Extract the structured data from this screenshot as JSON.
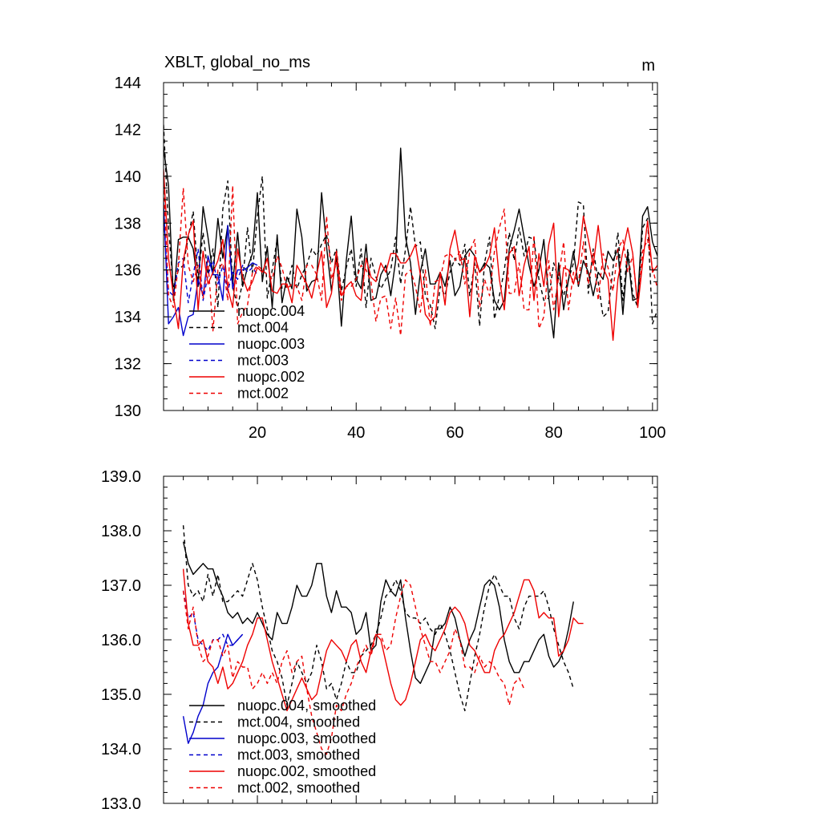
{
  "chart_data": [
    {
      "type": "line",
      "title": "XBLT, global_no_ms",
      "units": "m",
      "xlim": [
        1,
        101
      ],
      "ylim": [
        130,
        144
      ],
      "xticks": [
        20,
        40,
        60,
        80,
        100
      ],
      "yticks": [
        130,
        132,
        134,
        136,
        138,
        140,
        142,
        144
      ],
      "ytick_labels": [
        "130",
        "132",
        "134",
        "136",
        "138",
        "140",
        "142",
        "144"
      ],
      "xtick_labels": [
        "20",
        "40",
        "60",
        "80",
        "100"
      ],
      "legend_position": "bottom-left",
      "series": [
        {
          "name": "nuopc.004",
          "color": "#000000",
          "dash": "solid",
          "x_start": 1,
          "values": [
            141.2,
            139.6,
            134.7,
            137.3,
            137.4,
            137.4,
            136.9,
            135.3,
            138.7,
            137.4,
            135.8,
            138.2,
            136.5,
            137.9,
            135.4,
            137.6,
            135.3,
            136.1,
            136.7,
            139.3,
            135.5,
            137.0,
            134.4,
            137.5,
            134.6,
            135.7,
            135.2,
            138.6,
            137.4,
            135.1,
            135.5,
            135.6,
            139.3,
            137.0,
            135.1,
            136.6,
            133.6,
            136.4,
            138.3,
            135.6,
            135.2,
            137.1,
            134.7,
            134.8,
            135.8,
            136.2,
            134.9,
            136.4,
            141.2,
            137.4,
            136.3,
            134.1,
            135.9,
            136.9,
            135.4,
            135.4,
            135.9,
            135.3,
            136.4,
            134.9,
            135.3,
            136.6,
            136.9,
            136.6,
            135.9,
            136.3,
            136.1,
            134.7,
            134.3,
            134.7,
            136.9,
            137.7,
            138.6,
            137.4,
            136.2,
            135.3,
            136.0,
            137.3,
            134.8,
            133.1,
            136.3,
            134.3,
            135.6,
            136.8,
            135.3,
            136.4,
            135.9,
            134.9,
            135.9,
            135.6,
            136.8,
            136.4,
            136.9,
            134.1,
            136.7,
            134.7,
            134.8,
            138.3,
            138.7,
            137.2,
            136.6
          ]
        },
        {
          "name": "mct.004",
          "color": "#000000",
          "dash": "dashed",
          "x_start": 1,
          "values": [
            142.2,
            137.8,
            135.2,
            136.0,
            136.2,
            137.4,
            138.5,
            135.6,
            137.6,
            135.8,
            136.9,
            134.4,
            138.6,
            139.8,
            135.3,
            134.4,
            135.5,
            137.8,
            135.9,
            138.3,
            140.0,
            134.8,
            136.0,
            137.3,
            135.2,
            135.3,
            136.2,
            135.2,
            135.8,
            136.2,
            136.9,
            136.6,
            137.1,
            137.5,
            136.3,
            136.9,
            135.1,
            136.1,
            136.9,
            135.3,
            136.9,
            134.4,
            136.5,
            135.7,
            135.2,
            135.6,
            136.0,
            137.4,
            135.4,
            136.9,
            138.7,
            137.0,
            137.2,
            134.9,
            134.5,
            133.5,
            135.3,
            134.9,
            135.9,
            136.5,
            136.2,
            137.1,
            134.9,
            136.3,
            133.6,
            136.3,
            137.4,
            133.9,
            134.9,
            136.0,
            137.6,
            136.4,
            137.8,
            136.6,
            137.4,
            137.3,
            135.6,
            134.7,
            134.8,
            136.3,
            135.6,
            134.9,
            135.6,
            136.3,
            138.9,
            138.8,
            135.0,
            136.9,
            135.5,
            134.0,
            134.2,
            136.1,
            137.6,
            134.7,
            136.9,
            135.0,
            134.4,
            137.8,
            138.2,
            133.7,
            134.3
          ]
        },
        {
          "name": "nuopc.003",
          "color": "#0000cc",
          "dash": "solid",
          "x_start": 1,
          "values": [
            138.9,
            133.7,
            134.0,
            134.4,
            133.2,
            134.0,
            134.1,
            135.6,
            134.9,
            136.6,
            135.8,
            135.8,
            134.7,
            137.9,
            135.2,
            136.0,
            136.0,
            136.1,
            136.3,
            136.2
          ]
        },
        {
          "name": "mct.003",
          "color": "#0000cc",
          "dash": "dashed",
          "x_start": 1,
          "values": [
            138.4,
            135.1,
            134.9,
            136.3,
            136.5,
            134.6,
            135.8,
            136.9,
            134.7,
            135.8,
            136.4,
            135.4,
            136.2,
            135.1,
            135.9,
            135.6,
            136.2,
            135.9,
            136.1,
            135.8
          ]
        },
        {
          "name": "nuopc.002",
          "color": "#ee0000",
          "dash": "solid",
          "x_start": 1,
          "values": [
            140.3,
            136.5,
            134.9,
            133.5,
            136.4,
            137.5,
            138.1,
            134.3,
            136.8,
            135.4,
            135.9,
            136.4,
            137.3,
            135.2,
            134.4,
            136.9,
            135.7,
            135.1,
            135.5,
            136.1,
            135.9,
            136.5,
            135.1,
            135.0,
            135.4,
            135.4,
            134.6,
            136.2,
            135.8,
            135.4,
            134.8,
            135.8,
            136.8,
            134.4,
            135.0,
            136.8,
            134.9,
            135.3,
            135.5,
            134.9,
            134.7,
            136.5,
            135.7,
            135.5,
            136.3,
            135.9,
            136.7,
            136.7,
            136.3,
            136.3,
            136.6,
            137.1,
            135.8,
            134.1,
            133.8,
            134.0,
            135.9,
            134.5,
            136.9,
            137.7,
            136.4,
            136.5,
            134.0,
            136.6,
            135.9,
            136.1,
            136.6,
            137.8,
            135.6,
            134.3,
            136.7,
            137.0,
            134.9,
            136.2,
            137.0,
            134.7,
            136.7,
            135.3,
            137.1,
            138.0,
            134.0,
            136.1,
            136.0,
            135.4,
            136.3,
            138.3,
            137.3,
            136.2,
            137.9,
            136.1,
            135.6,
            133.0,
            135.6,
            136.8,
            137.8,
            136.7,
            134.4,
            136.3,
            138.1,
            135.9,
            136.2
          ]
        },
        {
          "name": "mct.002",
          "color": "#ee0000",
          "dash": "dashed",
          "x_start": 1,
          "values": [
            139.7,
            134.9,
            134.4,
            136.2,
            139.5,
            136.2,
            135.5,
            136.2,
            134.8,
            136.4,
            133.4,
            136.0,
            136.3,
            134.7,
            139.6,
            133.7,
            134.2,
            134.5,
            135.9,
            136.2,
            136.0,
            135.8,
            135.6,
            136.6,
            136.1,
            135.2,
            135.4,
            135.3,
            134.7,
            136.2,
            136.2,
            135.8,
            134.7,
            138.3,
            135.6,
            136.3,
            134.7,
            135.3,
            135.3,
            135.6,
            136.2,
            136.0,
            135.5,
            133.8,
            134.8,
            134.9,
            133.5,
            134.8,
            133.2,
            135.8,
            136.0,
            135.3,
            134.2,
            136.0,
            133.6,
            135.5,
            135.6,
            136.6,
            136.7,
            136.4,
            136.8,
            135.4,
            136.8,
            137.3,
            134.4,
            135.6,
            134.9,
            136.8,
            137.8,
            138.6,
            135.0,
            135.0,
            136.3,
            134.3,
            134.3,
            137.5,
            133.5,
            134.0,
            136.4,
            134.3,
            135.7,
            137.2,
            134.3,
            135.9,
            135.4,
            137.2,
            135.4,
            136.7,
            134.7,
            136.7,
            136.1,
            135.1,
            136.9,
            137.3,
            135.9,
            136.6,
            134.5,
            136.8,
            137.3,
            136.1,
            135.2
          ]
        }
      ]
    },
    {
      "type": "line",
      "title": "",
      "xlim": [
        1,
        101
      ],
      "ylim": [
        133.0,
        139.0
      ],
      "xticks": [
        20,
        40,
        60,
        80,
        100
      ],
      "yticks": [
        133.0,
        134.0,
        135.0,
        136.0,
        137.0,
        138.0,
        139.0
      ],
      "ytick_labels": [
        "133.0",
        "134.0",
        "135.0",
        "136.0",
        "137.0",
        "138.0",
        "139.0"
      ],
      "legend_position": "bottom-left",
      "series": [
        {
          "name": "nuopc.004, smoothed",
          "color": "#000000",
          "dash": "solid",
          "x_start": 5,
          "values": [
            137.8,
            137.4,
            137.2,
            137.3,
            137.4,
            137.3,
            137.3,
            137.0,
            136.8,
            136.5,
            136.4,
            136.5,
            136.3,
            136.4,
            136.3,
            136.5,
            136.3,
            136.1,
            136.0,
            136.5,
            136.3,
            136.3,
            136.6,
            137.0,
            136.8,
            136.8,
            137.0,
            137.4,
            137.4,
            136.8,
            136.5,
            136.9,
            136.6,
            136.6,
            136.5,
            136.1,
            136.2,
            136.5,
            135.8,
            135.9,
            136.7,
            137.1,
            136.9,
            136.8,
            137.1,
            136.4,
            135.8,
            135.3,
            135.2,
            135.4,
            135.6,
            136.2,
            136.2,
            136.3,
            136.6,
            136.4,
            136.0,
            135.7,
            136.0,
            136.2,
            136.6,
            137.0,
            137.1,
            137.0,
            136.6,
            136.0,
            135.6,
            135.4,
            135.4,
            135.6,
            135.6,
            135.8,
            136.0,
            136.1,
            135.7,
            135.5,
            135.6,
            135.8,
            136.2,
            136.7
          ]
        },
        {
          "name": "mct.004, smoothed",
          "color": "#000000",
          "dash": "dashed",
          "x_start": 5,
          "values": [
            138.1,
            137.0,
            136.8,
            136.9,
            136.7,
            137.2,
            136.8,
            137.2,
            136.7,
            136.7,
            136.8,
            136.9,
            136.8,
            137.1,
            137.4,
            137.1,
            136.6,
            136.2,
            135.8,
            135.6,
            135.3,
            134.8,
            135.2,
            135.6,
            135.4,
            135.2,
            135.4,
            135.9,
            135.6,
            135.1,
            135.2,
            134.9,
            135.2,
            135.6,
            135.4,
            135.4,
            135.7,
            135.8,
            135.9,
            136.1,
            136.4,
            136.8,
            136.9,
            137.1,
            136.9,
            136.5,
            136.4,
            136.4,
            136.3,
            136.4,
            136.2,
            136.1,
            136.3,
            136.1,
            135.8,
            135.4,
            135.0,
            134.7,
            135.2,
            135.7,
            136.1,
            136.6,
            137.0,
            137.2,
            137.0,
            136.8,
            136.8,
            136.4,
            136.2,
            136.6,
            136.8,
            136.8,
            136.8,
            136.9,
            136.6,
            136.2,
            135.9,
            135.6,
            135.4,
            135.1
          ]
        },
        {
          "name": "nuopc.003, smoothed",
          "color": "#0000cc",
          "dash": "solid",
          "x_start": 5,
          "values": [
            134.6,
            134.1,
            134.3,
            134.6,
            134.8,
            135.2,
            135.4,
            135.5,
            135.8,
            136.1,
            135.9,
            136.0,
            136.1
          ]
        },
        {
          "name": "mct.003, smoothed",
          "color": "#0000cc",
          "dash": "dashed",
          "x_start": 5,
          "values": [
            136.9,
            136.4,
            136.5,
            136.0,
            135.9,
            135.8,
            136.0,
            136.0,
            136.1,
            135.9,
            135.9,
            136.0,
            136.1
          ]
        },
        {
          "name": "nuopc.002, smoothed",
          "color": "#ee0000",
          "dash": "solid",
          "x_start": 5,
          "values": [
            137.3,
            136.3,
            135.9,
            135.9,
            136.0,
            135.6,
            135.5,
            135.2,
            135.5,
            135.1,
            135.2,
            135.4,
            135.6,
            135.9,
            136.1,
            136.4,
            136.4,
            136.0,
            135.6,
            135.3,
            135.0,
            134.7,
            134.9,
            135.1,
            135.3,
            135.1,
            134.9,
            135.0,
            135.4,
            135.8,
            136.0,
            135.9,
            135.8,
            135.6,
            135.9,
            136.0,
            135.6,
            135.4,
            135.8,
            136.1,
            136.0,
            135.6,
            135.2,
            134.9,
            134.8,
            134.9,
            135.2,
            135.6,
            136.0,
            136.1,
            135.9,
            135.8,
            136.0,
            136.2,
            136.5,
            136.6,
            136.5,
            136.3,
            135.9,
            135.8,
            135.6,
            135.4,
            135.4,
            135.8,
            136.0,
            136.1,
            136.3,
            136.5,
            136.8,
            137.1,
            137.1,
            136.9,
            136.4,
            136.5,
            136.4,
            136.4,
            135.7,
            135.8,
            136.0,
            136.4,
            136.3,
            136.3
          ]
        },
        {
          "name": "mct.002, smoothed",
          "color": "#ee0000",
          "dash": "dashed",
          "x_start": 5,
          "values": [
            136.9,
            136.2,
            136.6,
            135.9,
            135.6,
            135.7,
            136.0,
            136.0,
            135.7,
            135.9,
            135.3,
            135.6,
            135.5,
            135.5,
            135.1,
            135.2,
            135.4,
            135.2,
            135.4,
            135.2,
            135.6,
            135.8,
            135.4,
            135.6,
            135.7,
            135.1,
            134.6,
            134.3,
            134.0,
            133.9,
            134.2,
            134.8,
            134.7,
            135.0,
            135.2,
            135.5,
            135.7,
            135.9,
            135.7,
            136.1,
            136.1,
            135.8,
            135.9,
            136.4,
            136.8,
            137.1,
            137.0,
            136.6,
            136.2,
            135.9,
            135.6,
            135.6,
            135.4,
            135.6,
            135.8,
            136.2,
            136.0,
            135.5,
            135.5,
            135.4,
            135.7,
            135.5,
            135.6,
            135.5,
            135.3,
            135.2,
            134.8,
            135.2,
            135.3,
            135.1
          ]
        }
      ]
    }
  ]
}
